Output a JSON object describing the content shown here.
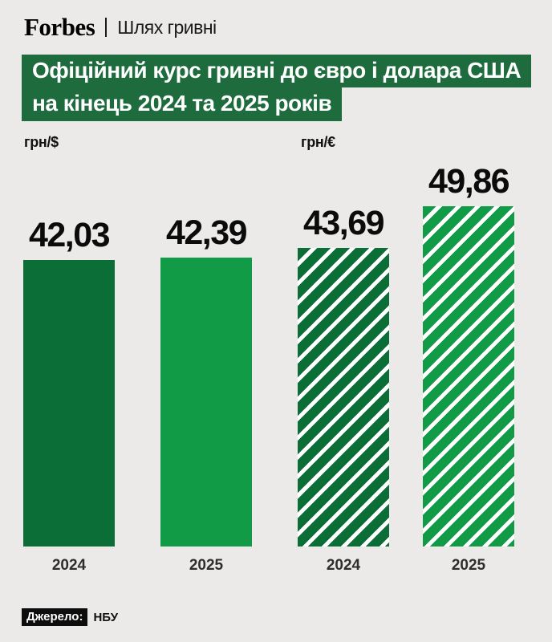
{
  "header": {
    "brand": "Forbes",
    "series": "Шлях гривні"
  },
  "title": {
    "line1": "Офіційний курс гривні до євро і долара США",
    "line2": "на кінець 2024 та 2025 років"
  },
  "source": {
    "label": "Джерело:",
    "value": "НБУ"
  },
  "colors": {
    "background": "#ebeae8",
    "title_background": "#1e6b3e",
    "bar_2024": "#0a6e36",
    "bar_2025": "#119b47",
    "stripe": "#ffffff",
    "value_text": "#0b0b0b",
    "year_text": "#2f2e2c"
  },
  "chart_data": {
    "type": "bar",
    "title": "Офіційний курс гривні до євро і долара США на кінець 2024 та 2025 років",
    "ylabel": "",
    "xlabel": "",
    "ylim": [
      0,
      49.86
    ],
    "grid": false,
    "legend_position": "none",
    "value_label_decimal_separator": ",",
    "groups": [
      {
        "unit_label": "грн/$",
        "pattern": "solid",
        "categories": [
          "2024",
          "2025"
        ],
        "bars": [
          {
            "year": "2024",
            "value": 42.03,
            "display": "42,03",
            "color": "#0a6e36"
          },
          {
            "year": "2025",
            "value": 42.39,
            "display": "42,39",
            "color": "#119b47"
          }
        ]
      },
      {
        "unit_label": "грн/€",
        "pattern": "striped",
        "categories": [
          "2024",
          "2025"
        ],
        "bars": [
          {
            "year": "2024",
            "value": 43.69,
            "display": "43,69",
            "color": "#0a6e36"
          },
          {
            "year": "2025",
            "value": 49.86,
            "display": "49,86",
            "color": "#119b47"
          }
        ]
      }
    ]
  }
}
